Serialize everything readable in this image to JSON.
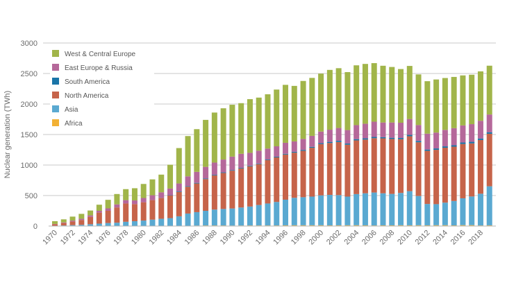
{
  "chart_data": {
    "type": "bar",
    "stacked": true,
    "title": "",
    "xlabel": "",
    "ylabel": "Nuclear generation (TWh)",
    "ylim": [
      0,
      3000
    ],
    "yticks": [
      0,
      500,
      1000,
      1500,
      2000,
      2500,
      3000
    ],
    "grid": true,
    "legend_position": "top-left",
    "categories": [
      1970,
      1971,
      1972,
      1973,
      1974,
      1975,
      1976,
      1977,
      1978,
      1979,
      1980,
      1981,
      1982,
      1983,
      1984,
      1985,
      1986,
      1987,
      1988,
      1989,
      1990,
      1991,
      1992,
      1993,
      1994,
      1995,
      1996,
      1997,
      1998,
      1999,
      2000,
      2001,
      2002,
      2003,
      2004,
      2005,
      2006,
      2007,
      2008,
      2009,
      2010,
      2011,
      2012,
      2013,
      2014,
      2015,
      2016,
      2017,
      2018,
      2019
    ],
    "xtick_labels": [
      "1970",
      "1972",
      "1974",
      "1976",
      "1978",
      "1980",
      "1982",
      "1984",
      "1986",
      "1988",
      "1990",
      "1992",
      "1994",
      "1996",
      "1998",
      "2000",
      "2002",
      "2004",
      "2006",
      "2008",
      "2010",
      "2012",
      "2014",
      "2016",
      "2018"
    ],
    "series": [
      {
        "name": "Africa",
        "color": "#f2b134",
        "values": [
          0,
          0,
          0,
          0,
          0,
          0,
          0,
          0,
          0,
          0,
          0,
          0,
          0,
          0,
          0,
          5,
          8,
          10,
          10,
          10,
          8,
          9,
          10,
          10,
          10,
          10,
          12,
          13,
          13,
          13,
          13,
          11,
          12,
          13,
          14,
          12,
          10,
          12,
          12,
          13,
          12,
          13,
          12,
          14,
          14,
          11,
          15,
          15,
          10,
          12
        ]
      },
      {
        "name": "Asia",
        "color": "#5aa9d1",
        "values": [
          5,
          10,
          15,
          20,
          30,
          40,
          50,
          55,
          70,
          80,
          90,
          105,
          120,
          130,
          160,
          200,
          220,
          240,
          260,
          270,
          280,
          295,
          310,
          335,
          360,
          385,
          420,
          450,
          460,
          470,
          490,
          500,
          495,
          470,
          510,
          525,
          540,
          525,
          515,
          530,
          560,
          480,
          350,
          345,
          370,
          400,
          440,
          470,
          520,
          640
        ]
      },
      {
        "name": "North America",
        "color": "#c6644a",
        "values": [
          25,
          40,
          60,
          80,
          120,
          180,
          200,
          250,
          300,
          280,
          300,
          320,
          340,
          370,
          400,
          440,
          470,
          520,
          560,
          590,
          620,
          640,
          660,
          670,
          710,
          730,
          740,
          740,
          760,
          800,
          840,
          850,
          870,
          850,
          880,
          880,
          890,
          900,
          900,
          880,
          900,
          880,
          870,
          890,
          900,
          890,
          890,
          870,
          880,
          860
        ]
      },
      {
        "name": "South America",
        "color": "#1a75a8",
        "values": [
          0,
          0,
          0,
          0,
          0,
          0,
          0,
          0,
          0,
          0,
          0,
          0,
          3,
          5,
          8,
          10,
          10,
          10,
          10,
          10,
          10,
          10,
          10,
          10,
          10,
          12,
          12,
          14,
          15,
          15,
          15,
          18,
          20,
          20,
          20,
          20,
          20,
          20,
          20,
          20,
          22,
          22,
          22,
          23,
          22,
          23,
          24,
          25,
          25,
          26
        ]
      },
      {
        "name": "East Europe & Russia",
        "color": "#b5689a",
        "values": [
          5,
          10,
          15,
          20,
          25,
          30,
          40,
          50,
          55,
          60,
          70,
          80,
          90,
          110,
          130,
          160,
          180,
          190,
          200,
          210,
          220,
          230,
          210,
          210,
          180,
          170,
          180,
          170,
          180,
          180,
          190,
          200,
          210,
          220,
          230,
          240,
          250,
          240,
          250,
          250,
          260,
          260,
          260,
          260,
          270,
          280,
          280,
          290,
          290,
          290
        ]
      },
      {
        "name": "West & Central Europe",
        "color": "#a1b54a",
        "values": [
          45,
          50,
          65,
          80,
          80,
          100,
          140,
          170,
          180,
          200,
          230,
          260,
          290,
          390,
          580,
          660,
          700,
          770,
          820,
          840,
          850,
          830,
          880,
          870,
          890,
          930,
          950,
          910,
          950,
          950,
          950,
          980,
          980,
          950,
          980,
          980,
          960,
          930,
          910,
          880,
          870,
          830,
          860,
          870,
          850,
          840,
          820,
          810,
          810,
          800
        ]
      }
    ]
  }
}
